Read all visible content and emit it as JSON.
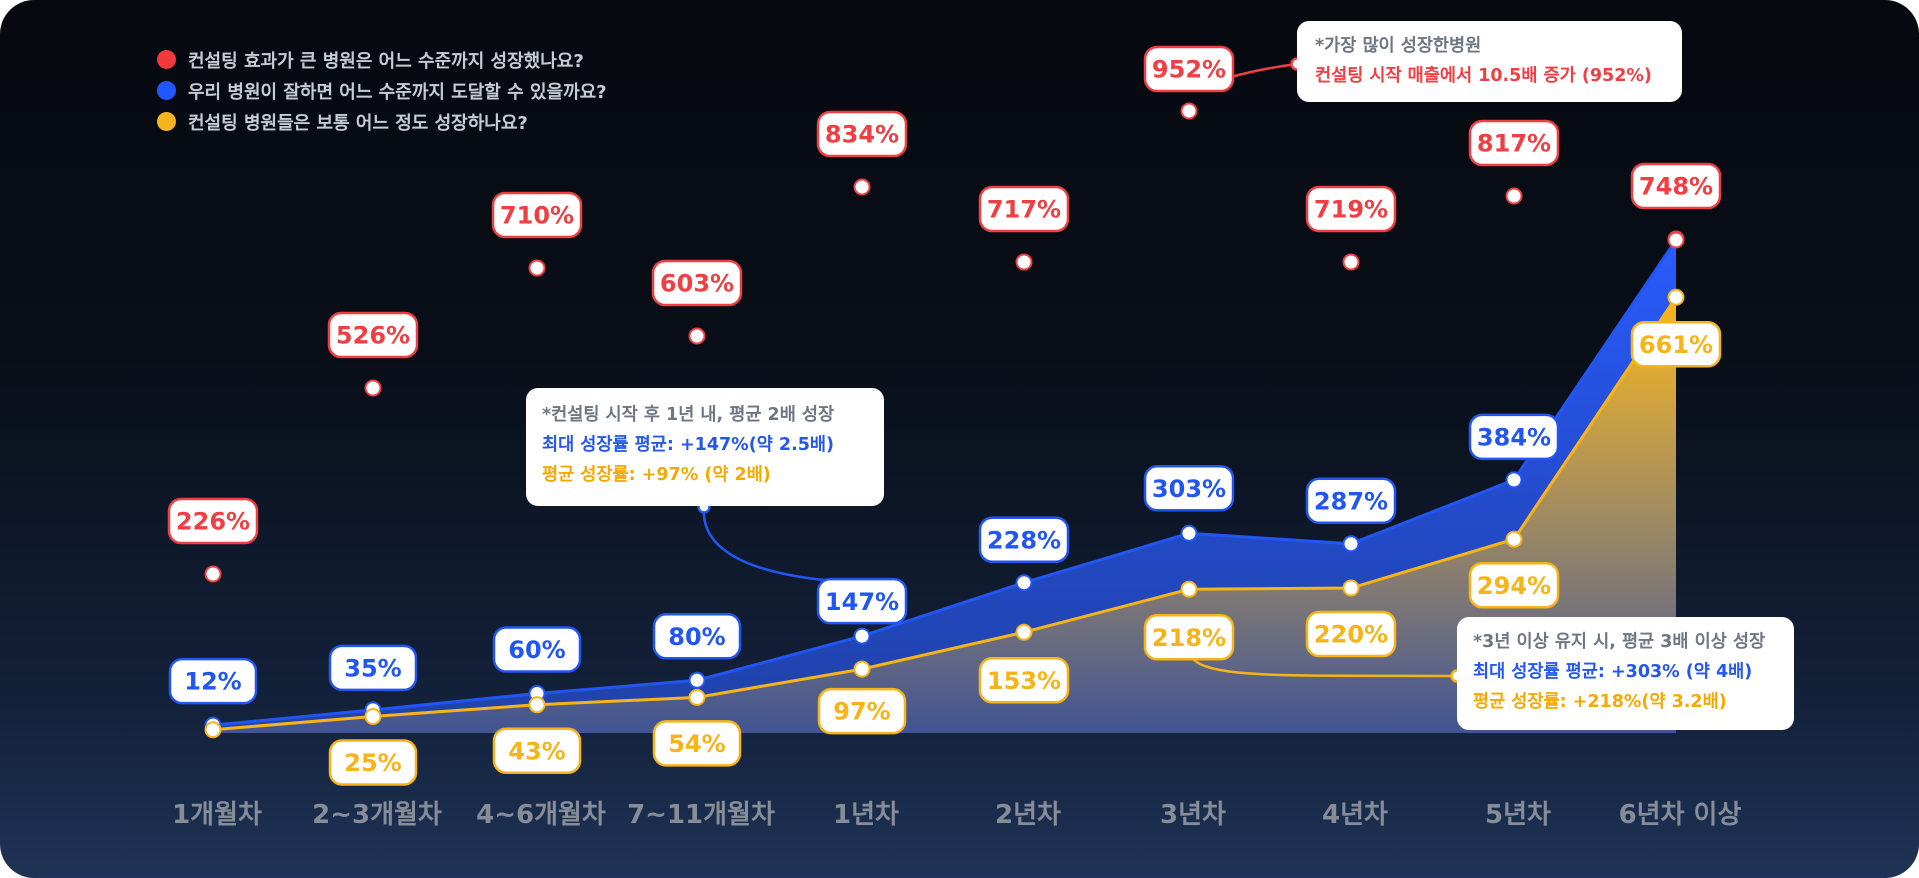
{
  "legend": [
    {
      "label": "컨설팅 효과가 큰 병원은 어느 수준까지 성장했나요?",
      "color": "#f1383c"
    },
    {
      "label": "우리 병원이 잘하면 어느 수준까지 도달할 수 있을까요?",
      "color": "#2257ff"
    },
    {
      "label": "컨설팅 병원들은 보통 어느 정도 성장하나요?",
      "color": "#f6b51e"
    }
  ],
  "colors": {
    "red": "#ef3f42",
    "blue": "#2256f2",
    "orange": "#f7b418",
    "axis_text": "#878d98"
  },
  "callouts": {
    "top": {
      "title": "*가장 많이 성장한병원",
      "line": "컨설팅 시작 매출에서 10.5배 증가 (952%)"
    },
    "first_year": {
      "title": "*컨설팅 시작 후 1년 내, 평균 2배 성장",
      "max_line": "최대 성장률 평균: +147%(약  2.5배)",
      "avg_line": "평균 성장률: +97% (약 2배)"
    },
    "three_year": {
      "title": "*3년 이상 유지 시, 평균 3배 이상 성장",
      "max_line": "최대 성장률 평균: +303% (약 4배)",
      "avg_line": "평균 성장률: +218%(약 3.2배)"
    }
  },
  "chart_data": {
    "type": "area",
    "categories": [
      "1개월차",
      "2~3개월차",
      "4~6개월차",
      "7~11개월차",
      "1년차",
      "2년차",
      "3년차",
      "4년차",
      "5년차",
      "6년차 이상"
    ],
    "series": [
      {
        "values": [
          226,
          526,
          710,
          603,
          834,
          717,
          952,
          719,
          817,
          748
        ],
        "labels": [
          "226%",
          "526%",
          "710%",
          "603%",
          "834%",
          "717%",
          "952%",
          "719%",
          "817%",
          "748%"
        ]
      },
      {
        "values": [
          12,
          35,
          60,
          80,
          147,
          228,
          303,
          287,
          384,
          748
        ],
        "labels": [
          "12%",
          "35%",
          "60%",
          "80%",
          "147%",
          "228%",
          "303%",
          "287%",
          "384%",
          ""
        ]
      },
      {
        "values": [
          5,
          25,
          43,
          54,
          97,
          153,
          218,
          220,
          294,
          661
        ],
        "labels": [
          "",
          "25%",
          "43%",
          "54%",
          "97%",
          "153%",
          "218%",
          "220%",
          "294%",
          "661%"
        ]
      }
    ]
  }
}
